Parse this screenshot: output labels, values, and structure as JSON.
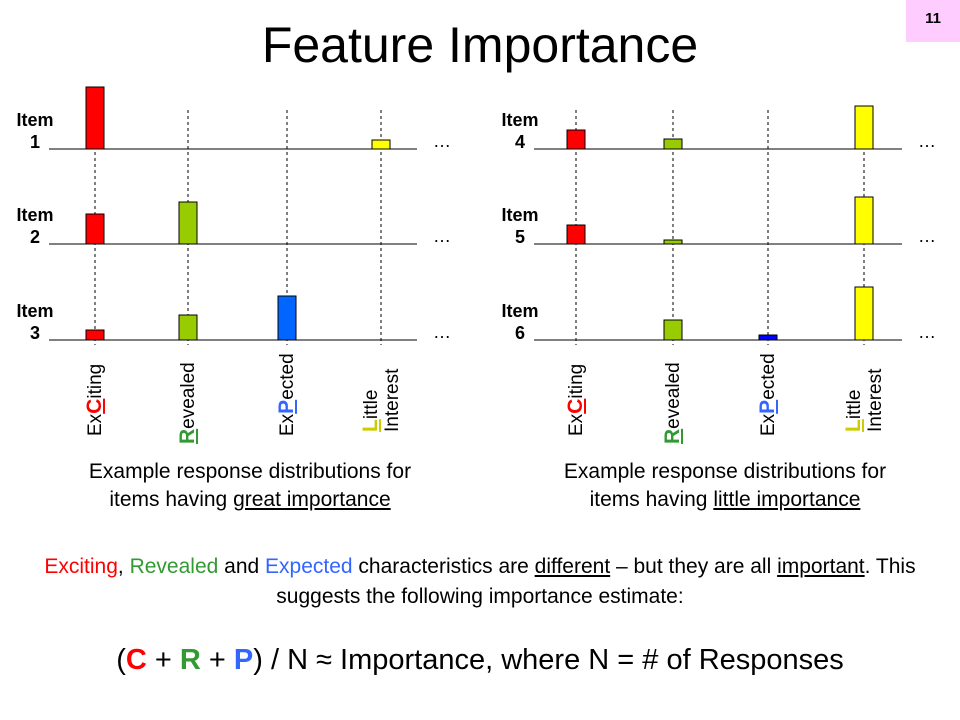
{
  "page_number": "11",
  "title": "Feature Importance",
  "colors": {
    "exciting": "#ff0000",
    "revealed": "#99cc00",
    "expected": "#0066ff",
    "expected_dark": "#0000ff",
    "little": "#ffff00",
    "exciting_text": "#ff0000",
    "revealed_text": "#339933",
    "expected_text": "#3366ff",
    "little_text": "#cccc00"
  },
  "category_labels": [
    {
      "key": "exciting",
      "prefix": "Ex",
      "letter": "C",
      "suffix": "iting",
      "suffix2": ""
    },
    {
      "key": "revealed",
      "prefix": "",
      "letter": "R",
      "suffix": "evealed",
      "suffix2": ""
    },
    {
      "key": "expected",
      "prefix": "Ex",
      "letter": "P",
      "suffix": "ected",
      "suffix2": ""
    },
    {
      "key": "little",
      "prefix": "",
      "letter": "L",
      "suffix": "ittle",
      "suffix2": "Interest"
    }
  ],
  "ellipsis": "…",
  "left_panel": {
    "caption_line1": "Example response distributions for",
    "caption_line2_prefix": "items having ",
    "caption_line2_underlined": "great importance",
    "items": [
      {
        "word": "Item",
        "number": "1",
        "values": [
          62,
          0,
          0,
          9
        ]
      },
      {
        "word": "Item",
        "number": "2",
        "values": [
          30,
          42,
          0,
          0
        ]
      },
      {
        "word": "Item",
        "number": "3",
        "values": [
          10,
          25,
          44,
          0
        ]
      }
    ]
  },
  "right_panel": {
    "caption_line1": "Example response distributions for",
    "caption_line2_prefix": "items having ",
    "caption_line2_underlined": "little importance",
    "items": [
      {
        "word": "Item",
        "number": "4",
        "values": [
          19,
          10,
          0,
          43
        ]
      },
      {
        "word": "Item",
        "number": "5",
        "values": [
          19,
          4,
          0,
          47
        ]
      },
      {
        "word": "Item",
        "number": "6",
        "values": [
          0,
          20,
          5,
          53
        ]
      }
    ]
  },
  "body": {
    "exciting": "Exciting",
    "sep1": ", ",
    "revealed": "Revealed",
    "and": " and ",
    "expected": "Expected",
    "mid": " characteristics are ",
    "different": "different",
    "mid2": " – but they are all ",
    "important": "important",
    "end": ".  This suggests the following importance estimate:"
  },
  "formula": {
    "open": "(",
    "c": "C",
    "plus1": " + ",
    "r": "R",
    "plus2": " + ",
    "p": "P",
    "rest": ") / N ≈ Importance,    where N = # of Responses"
  }
}
